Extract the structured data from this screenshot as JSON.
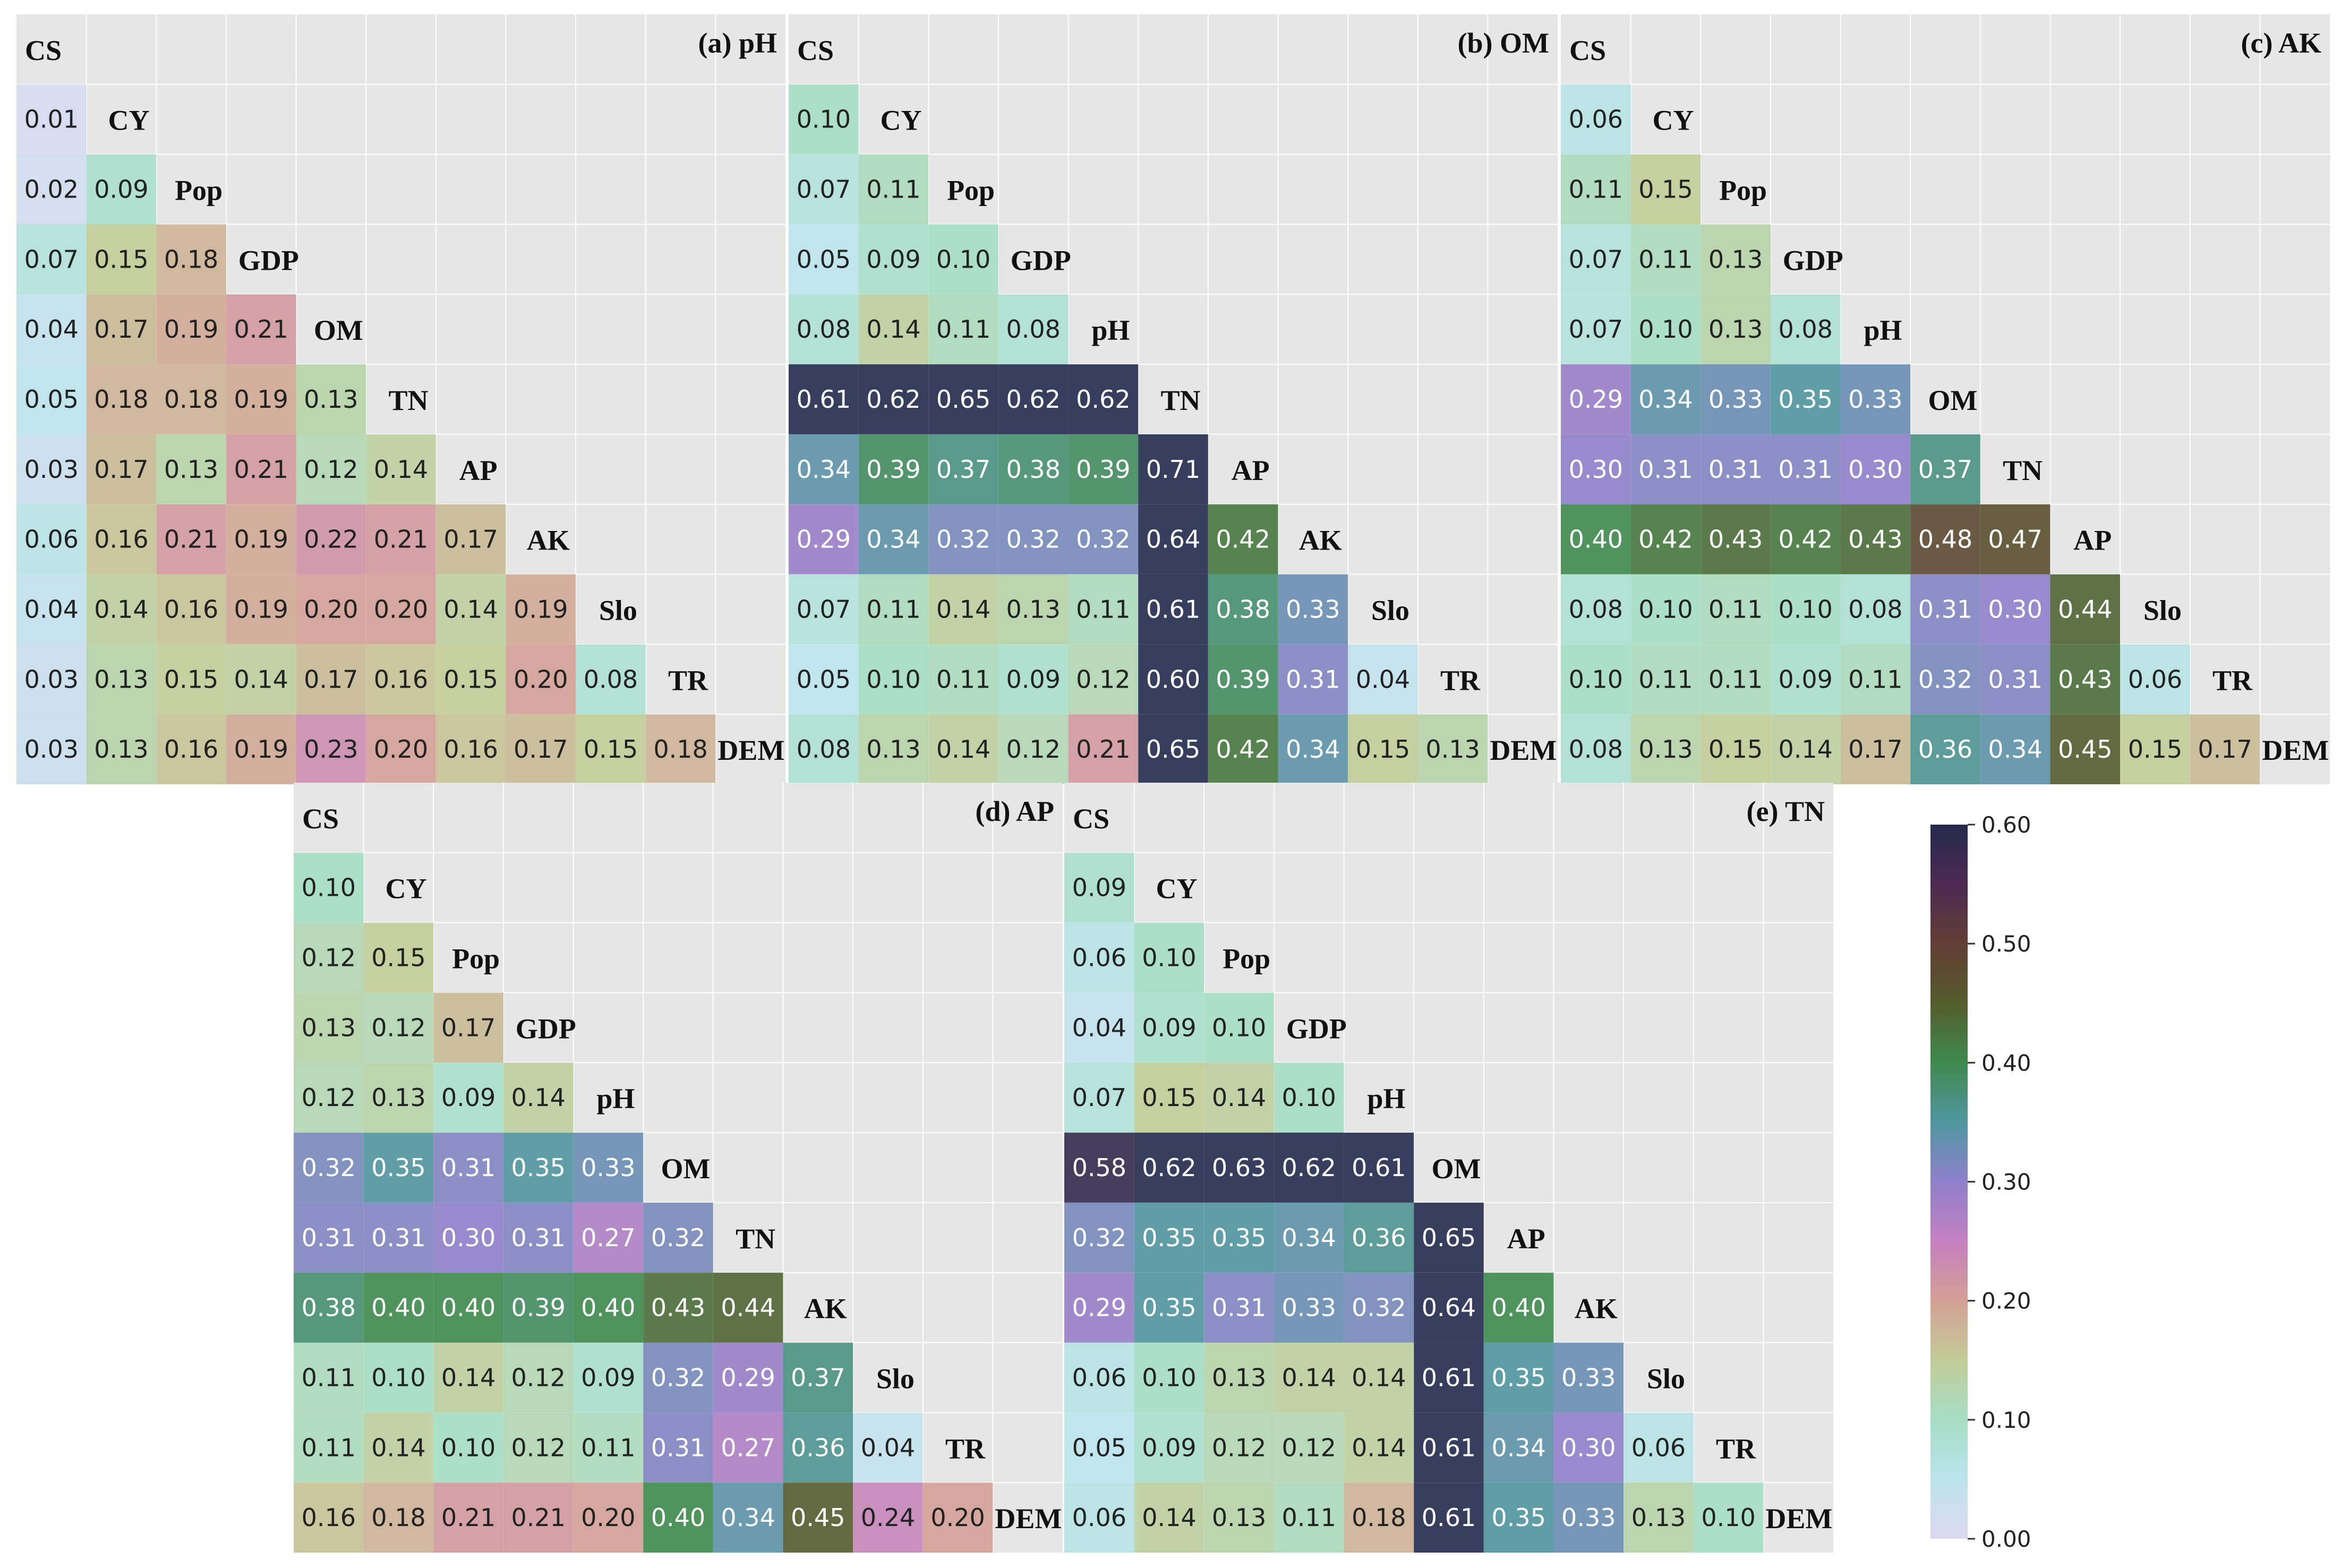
{
  "chart_data": {
    "type": "heatmap",
    "colorbar": {
      "min": 0.0,
      "max": 0.6,
      "ticks": [
        "0.00",
        "0.10",
        "0.20",
        "0.30",
        "0.40",
        "0.50",
        "0.60"
      ]
    },
    "panels": [
      {
        "id": "a",
        "title": "(a) pH",
        "labels": [
          "CS",
          "CY",
          "Pop",
          "GDP",
          "OM",
          "TN",
          "AP",
          "AK",
          "Slo",
          "TR",
          "DEM"
        ],
        "rows": [
          [
            "0.01"
          ],
          [
            "0.02",
            "0.09"
          ],
          [
            "0.07",
            "0.15",
            "0.18"
          ],
          [
            "0.04",
            "0.17",
            "0.19",
            "0.21"
          ],
          [
            "0.05",
            "0.18",
            "0.18",
            "0.19",
            "0.13"
          ],
          [
            "0.03",
            "0.17",
            "0.13",
            "0.21",
            "0.12",
            "0.14"
          ],
          [
            "0.06",
            "0.16",
            "0.21",
            "0.19",
            "0.22",
            "0.21",
            "0.17"
          ],
          [
            "0.04",
            "0.14",
            "0.16",
            "0.19",
            "0.20",
            "0.20",
            "0.14",
            "0.19"
          ],
          [
            "0.03",
            "0.13",
            "0.15",
            "0.14",
            "0.17",
            "0.16",
            "0.15",
            "0.20",
            "0.08"
          ],
          [
            "0.03",
            "0.13",
            "0.16",
            "0.19",
            "0.23",
            "0.20",
            "0.16",
            "0.17",
            "0.15",
            "0.18"
          ]
        ]
      },
      {
        "id": "b",
        "title": "(b) OM",
        "labels": [
          "CS",
          "CY",
          "Pop",
          "GDP",
          "pH",
          "TN",
          "AP",
          "AK",
          "Slo",
          "TR",
          "DEM"
        ],
        "rows": [
          [
            "0.10"
          ],
          [
            "0.07",
            "0.11"
          ],
          [
            "0.05",
            "0.09",
            "0.10"
          ],
          [
            "0.08",
            "0.14",
            "0.11",
            "0.08"
          ],
          [
            "0.61",
            "0.62",
            "0.65",
            "0.62",
            "0.62"
          ],
          [
            "0.34",
            "0.39",
            "0.37",
            "0.38",
            "0.39",
            "0.71"
          ],
          [
            "0.29",
            "0.34",
            "0.32",
            "0.32",
            "0.32",
            "0.64",
            "0.42"
          ],
          [
            "0.07",
            "0.11",
            "0.14",
            "0.13",
            "0.11",
            "0.61",
            "0.38",
            "0.33"
          ],
          [
            "0.05",
            "0.10",
            "0.11",
            "0.09",
            "0.12",
            "0.60",
            "0.39",
            "0.31",
            "0.04"
          ],
          [
            "0.08",
            "0.13",
            "0.14",
            "0.12",
            "0.21",
            "0.65",
            "0.42",
            "0.34",
            "0.15",
            "0.13"
          ]
        ]
      },
      {
        "id": "c",
        "title": "(c) AK",
        "labels": [
          "CS",
          "CY",
          "Pop",
          "GDP",
          "pH",
          "OM",
          "TN",
          "AP",
          "Slo",
          "TR",
          "DEM"
        ],
        "rows": [
          [
            "0.06"
          ],
          [
            "0.11",
            "0.15"
          ],
          [
            "0.07",
            "0.11",
            "0.13"
          ],
          [
            "0.07",
            "0.10",
            "0.13",
            "0.08"
          ],
          [
            "0.29",
            "0.34",
            "0.33",
            "0.35",
            "0.33"
          ],
          [
            "0.30",
            "0.31",
            "0.31",
            "0.31",
            "0.30",
            "0.37"
          ],
          [
            "0.40",
            "0.42",
            "0.43",
            "0.42",
            "0.43",
            "0.48",
            "0.47"
          ],
          [
            "0.08",
            "0.10",
            "0.11",
            "0.10",
            "0.08",
            "0.31",
            "0.30",
            "0.44"
          ],
          [
            "0.10",
            "0.11",
            "0.11",
            "0.09",
            "0.11",
            "0.32",
            "0.31",
            "0.43",
            "0.06"
          ],
          [
            "0.08",
            "0.13",
            "0.15",
            "0.14",
            "0.17",
            "0.36",
            "0.34",
            "0.45",
            "0.15",
            "0.17"
          ]
        ]
      },
      {
        "id": "d",
        "title": "(d) AP",
        "labels": [
          "CS",
          "CY",
          "Pop",
          "GDP",
          "pH",
          "OM",
          "TN",
          "AK",
          "Slo",
          "TR",
          "DEM"
        ],
        "rows": [
          [
            "0.10"
          ],
          [
            "0.12",
            "0.15"
          ],
          [
            "0.13",
            "0.12",
            "0.17"
          ],
          [
            "0.12",
            "0.13",
            "0.09",
            "0.14"
          ],
          [
            "0.32",
            "0.35",
            "0.31",
            "0.35",
            "0.33"
          ],
          [
            "0.31",
            "0.31",
            "0.30",
            "0.31",
            "0.27",
            "0.32"
          ],
          [
            "0.38",
            "0.40",
            "0.40",
            "0.39",
            "0.40",
            "0.43",
            "0.44"
          ],
          [
            "0.11",
            "0.10",
            "0.14",
            "0.12",
            "0.09",
            "0.32",
            "0.29",
            "0.37"
          ],
          [
            "0.11",
            "0.14",
            "0.10",
            "0.12",
            "0.11",
            "0.31",
            "0.27",
            "0.36",
            "0.04"
          ],
          [
            "0.16",
            "0.18",
            "0.21",
            "0.21",
            "0.20",
            "0.40",
            "0.34",
            "0.45",
            "0.24",
            "0.20"
          ]
        ]
      },
      {
        "id": "e",
        "title": "(e) TN",
        "labels": [
          "CS",
          "CY",
          "Pop",
          "GDP",
          "pH",
          "OM",
          "AP",
          "AK",
          "Slo",
          "TR",
          "DEM"
        ],
        "rows": [
          [
            "0.09"
          ],
          [
            "0.06",
            "0.10"
          ],
          [
            "0.04",
            "0.09",
            "0.10"
          ],
          [
            "0.07",
            "0.15",
            "0.14",
            "0.10"
          ],
          [
            "0.58",
            "0.62",
            "0.63",
            "0.62",
            "0.61"
          ],
          [
            "0.32",
            "0.35",
            "0.35",
            "0.34",
            "0.36",
            "0.65"
          ],
          [
            "0.29",
            "0.35",
            "0.31",
            "0.33",
            "0.32",
            "0.64",
            "0.40"
          ],
          [
            "0.06",
            "0.10",
            "0.13",
            "0.14",
            "0.14",
            "0.61",
            "0.35",
            "0.33"
          ],
          [
            "0.05",
            "0.09",
            "0.12",
            "0.12",
            "0.14",
            "0.61",
            "0.34",
            "0.30",
            "0.06"
          ],
          [
            "0.06",
            "0.14",
            "0.13",
            "0.11",
            "0.18",
            "0.61",
            "0.35",
            "0.33",
            "0.13",
            "0.10"
          ]
        ]
      }
    ]
  }
}
